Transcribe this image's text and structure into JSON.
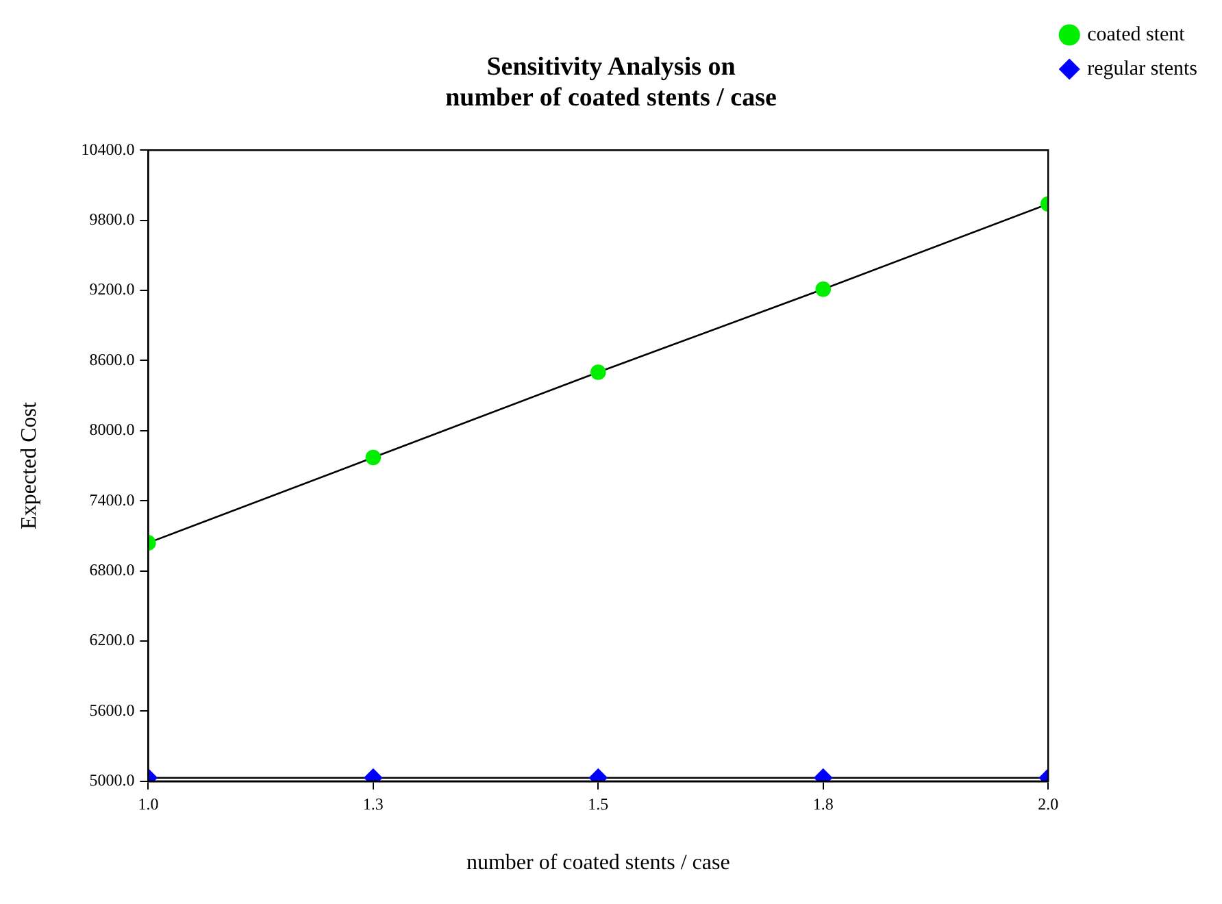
{
  "chart_data": {
    "type": "line",
    "title": "Sensitivity Analysis on\nnumber of coated stents / case",
    "xlabel": "number of coated stents / case",
    "ylabel": "Expected Cost",
    "x": [
      1.0,
      1.25,
      1.5,
      1.75,
      2.0
    ],
    "series": [
      {
        "name": "coated stent",
        "color": "#00ee00",
        "marker": "circle",
        "values": [
          7040,
          7770,
          8500,
          9210,
          9940
        ]
      },
      {
        "name": "regular stents",
        "color": "#0000ff",
        "marker": "diamond",
        "values": [
          5030,
          5030,
          5030,
          5030,
          5030
        ]
      }
    ],
    "xlim": [
      1.0,
      2.0
    ],
    "xticks": [
      {
        "value": 1.0,
        "label": "1.0"
      },
      {
        "value": 1.25,
        "label": "1.3"
      },
      {
        "value": 1.5,
        "label": "1.5"
      },
      {
        "value": 1.75,
        "label": "1.8"
      },
      {
        "value": 2.0,
        "label": "2.0"
      }
    ],
    "ylim": [
      5000,
      10400
    ],
    "yticks": [
      {
        "value": 5000,
        "label": "5000.0"
      },
      {
        "value": 5600,
        "label": "5600.0"
      },
      {
        "value": 6200,
        "label": "6200.0"
      },
      {
        "value": 6800,
        "label": "6800.0"
      },
      {
        "value": 7400,
        "label": "7400.0"
      },
      {
        "value": 8000,
        "label": "8000.0"
      },
      {
        "value": 8600,
        "label": "8600.0"
      },
      {
        "value": 9200,
        "label": "9200.0"
      },
      {
        "value": 9800,
        "label": "9800.0"
      },
      {
        "value": 10400,
        "label": "10400.0"
      }
    ],
    "grid": false,
    "legend": "top right",
    "line_style": "solid"
  }
}
